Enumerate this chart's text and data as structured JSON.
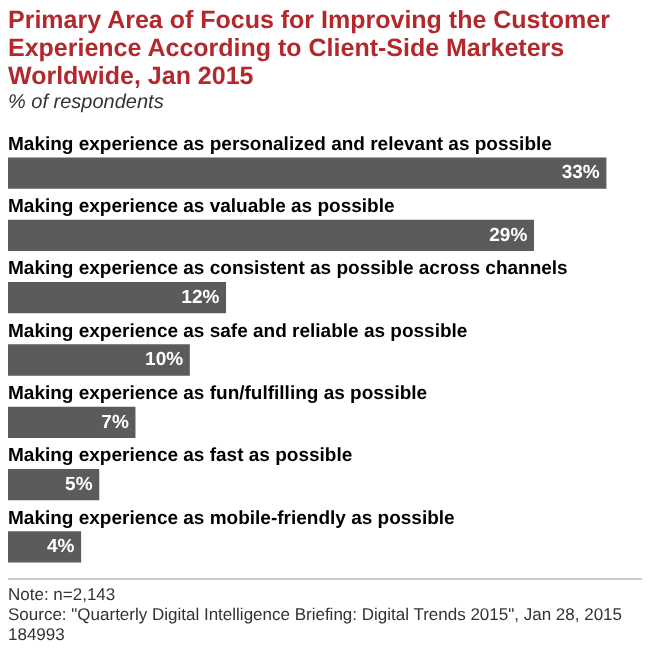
{
  "chart_data": {
    "type": "bar",
    "orientation": "horizontal",
    "title": "Primary Area of Focus for Improving the Customer Experience According to Client-Side Marketers Worldwide, Jan 2015",
    "subtitle": "% of respondents",
    "categories": [
      "Making experience as personalized and relevant as possible",
      "Making experience as valuable as possible",
      "Making experience as consistent as possible across channels",
      "Making experience as safe and reliable as possible",
      "Making experience as fun/fulfilling as possible",
      "Making experience as fast as possible",
      "Making experience as mobile-friendly as possible"
    ],
    "values": [
      33,
      29,
      12,
      10,
      7,
      5,
      4
    ],
    "value_labels": [
      "33%",
      "29%",
      "12%",
      "10%",
      "7%",
      "5%",
      "4%"
    ],
    "color": "#5b5b5b",
    "legend": false,
    "tick_labels": false,
    "annotations": [
      "Note: n=2,143",
      "Source: \"Quarterly Digital Intelligence Briefing: Digital Trends 2015\", Jan 28, 2015",
      "184993"
    ]
  }
}
